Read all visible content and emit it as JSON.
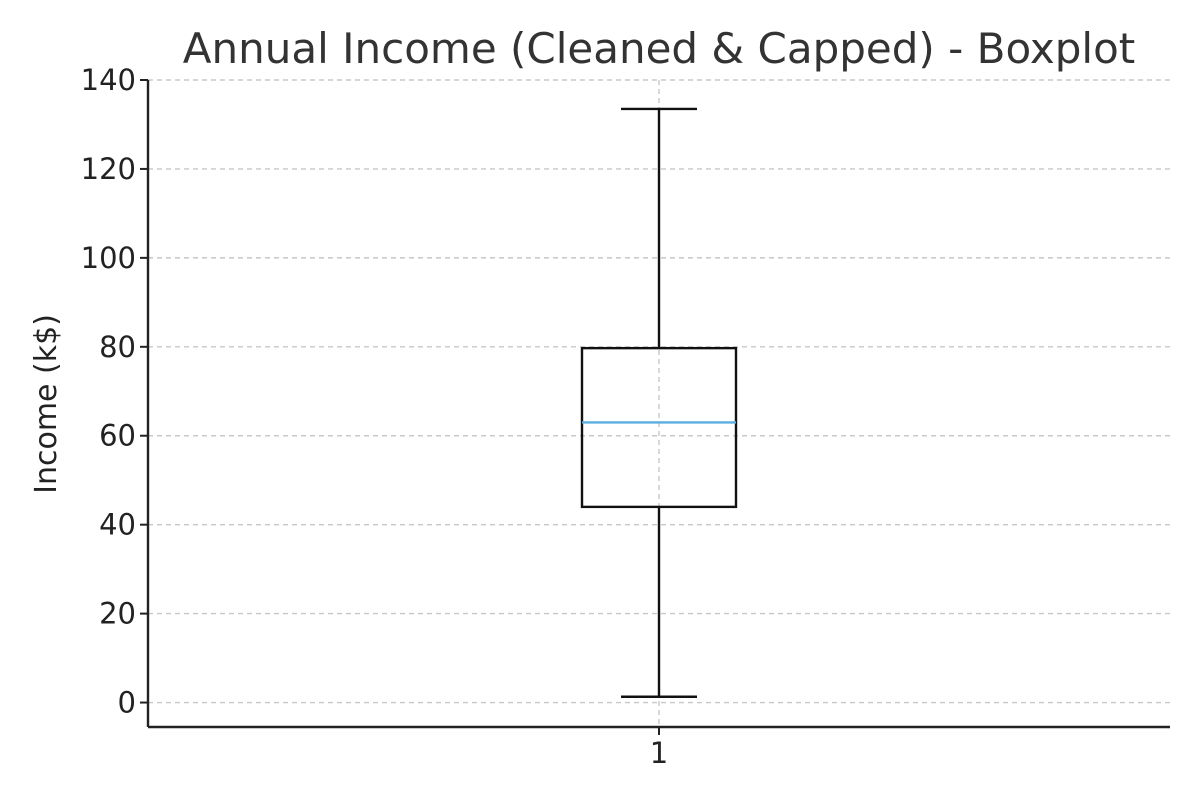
{
  "chart_data": {
    "type": "boxplot",
    "title": "Annual Income (Cleaned & Capped) - Boxplot",
    "xlabel": "",
    "ylabel": "Income (k$)",
    "ylim": [
      -5.5,
      140
    ],
    "yticks": [
      0,
      20,
      40,
      60,
      80,
      100,
      120,
      140
    ],
    "categories": [
      "1"
    ],
    "boxes": [
      {
        "label": "1",
        "whisker_low": 1.3,
        "q1": 44,
        "median": 63,
        "q3": 79.7,
        "whisker_high": 133.5
      }
    ],
    "grid": true,
    "colors": {
      "median": "#5aaee0",
      "box": "#111111",
      "grid": "#c8c8c8",
      "axis": "#222222"
    }
  }
}
